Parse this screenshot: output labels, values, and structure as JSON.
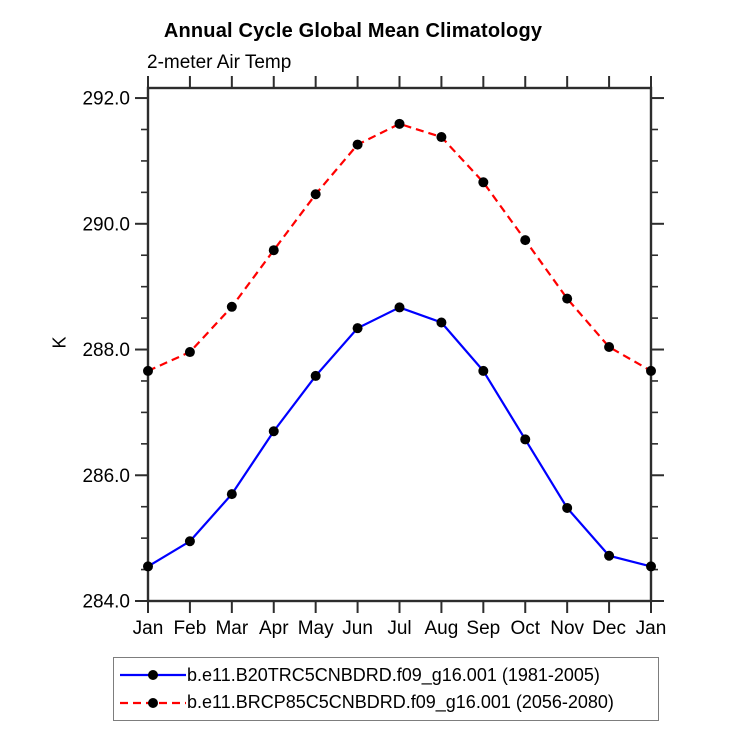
{
  "chart_data": {
    "type": "line",
    "title": "Annual Cycle Global Mean Climatology",
    "subtitle": "2-meter Air Temp",
    "ylabel": "K",
    "x_categories": [
      "Jan",
      "Feb",
      "Mar",
      "Apr",
      "May",
      "Jun",
      "Jul",
      "Aug",
      "Sep",
      "Oct",
      "Nov",
      "Dec",
      "Jan"
    ],
    "series": [
      {
        "name": "b.e11.B20TRC5CNBDRD.f09_g16.001 (1981-2005)",
        "color": "#0000ff",
        "line_style": "solid",
        "marker": "circle",
        "marker_color": "#000000",
        "values": [
          284.55,
          284.95,
          285.7,
          286.7,
          287.58,
          288.34,
          288.67,
          288.43,
          287.66,
          286.57,
          285.48,
          284.72,
          284.55
        ]
      },
      {
        "name": "b.e11.BRCP85C5CNBDRD.f09_g16.001 (2056-2080)",
        "color": "#ff0000",
        "line_style": "dashed",
        "marker": "circle",
        "marker_color": "#000000",
        "values": [
          287.66,
          287.96,
          288.68,
          289.58,
          290.47,
          291.26,
          291.59,
          291.38,
          290.66,
          289.74,
          288.81,
          288.04,
          287.66
        ]
      }
    ],
    "ylim": [
      284.0,
      292.16
    ],
    "yticks_major": [
      284.0,
      286.0,
      288.0,
      290.0,
      292.0
    ],
    "ytick_labels": [
      "284.0",
      "286.0",
      "288.0",
      "290.0",
      "292.0"
    ],
    "yminor_step": 0.5,
    "grid": false,
    "axis_color": "#2d2d2d",
    "legend_position": "bottom"
  }
}
